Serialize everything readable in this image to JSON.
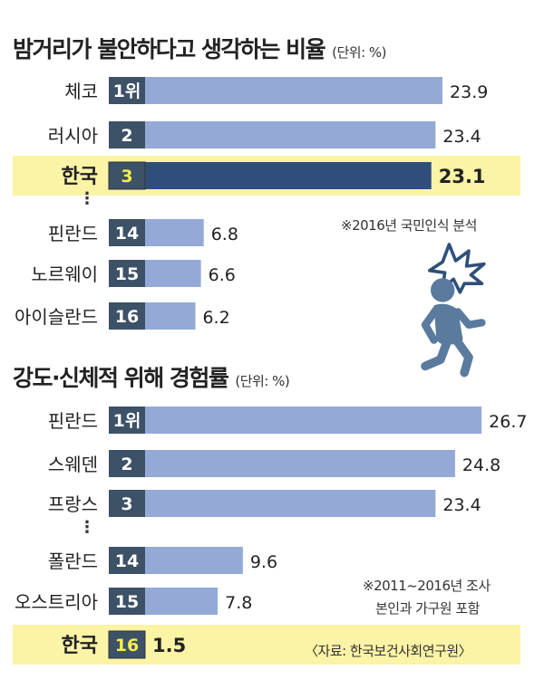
{
  "chart_data": [
    {
      "type": "bar",
      "orientation": "horizontal",
      "title": "밤거리가 불안하다고 생각하는 비율",
      "unit_label": "(단위: %)",
      "note": "※2016년 국민인식 분석",
      "highlight": "한국",
      "ellipsis": "⋮",
      "rows": [
        {
          "country": "체코",
          "rank": "1위",
          "value": 23.9
        },
        {
          "country": "러시아",
          "rank": "2",
          "value": 23.4
        },
        {
          "country": "한국",
          "rank": "3",
          "value": 23.1,
          "highlight": true
        },
        {
          "country": "핀란드",
          "rank": "14",
          "value": 6.8
        },
        {
          "country": "노르웨이",
          "rank": "15",
          "value": 6.6
        },
        {
          "country": "아이슬란드",
          "rank": "16",
          "value": 6.2
        }
      ]
    },
    {
      "type": "bar",
      "orientation": "horizontal",
      "title": "강도·신체적 위해 경험률",
      "unit_label": "(단위: %)",
      "notes": [
        "※2011~2016년 조사",
        "본인과 가구원 포함"
      ],
      "source": "〈자료: 한국보건사회연구원〉",
      "highlight": "한국",
      "ellipsis": "⋮",
      "rows": [
        {
          "country": "핀란드",
          "rank": "1위",
          "value": 26.7
        },
        {
          "country": "스웨덴",
          "rank": "2",
          "value": 24.8
        },
        {
          "country": "프랑스",
          "rank": "3",
          "value": 23.4
        },
        {
          "country": "폴란드",
          "rank": "14",
          "value": 9.6
        },
        {
          "country": "오스트리아",
          "rank": "15",
          "value": 7.8
        },
        {
          "country": "한국",
          "rank": "16",
          "value": 1.5,
          "highlight": true
        }
      ]
    }
  ],
  "colors": {
    "bar": "#94a9d6",
    "bar_highlight": "#2f4f7a",
    "badge": "#3d5167",
    "badge_highlight_fill": "#f5ee4a",
    "highlight_band": "#fbf3a6",
    "figure": "#5a7a9e",
    "burst": "#2f4f7a"
  },
  "icons": [
    "worried-walking-person-icon",
    "shock-burst-icon"
  ]
}
